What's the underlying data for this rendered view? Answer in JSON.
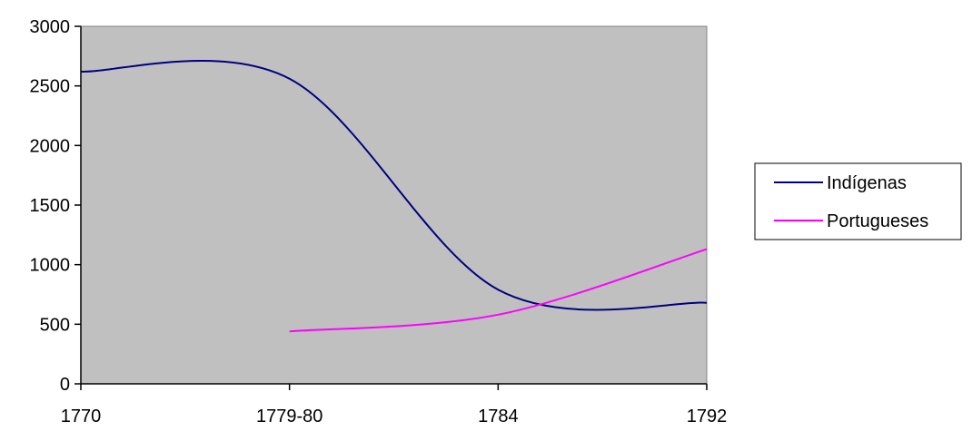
{
  "chart_data": {
    "type": "line",
    "title": "",
    "xlabel": "",
    "ylabel": "",
    "categories": [
      "1770",
      "1779-80",
      "1784",
      "1792"
    ],
    "ylim": [
      0,
      3000
    ],
    "yticks": [
      "0",
      "500",
      "1000",
      "1500",
      "2000",
      "2500",
      "3000"
    ],
    "grid": false,
    "legend_position": "right",
    "plot_background": "#C0C0C0",
    "series": [
      {
        "name": "Indígenas",
        "color": "#000080",
        "values": [
          2620,
          2560,
          790,
          680
        ]
      },
      {
        "name": "Portugueses",
        "color": "#FF00FF",
        "values": [
          null,
          440,
          580,
          1130
        ]
      }
    ]
  }
}
